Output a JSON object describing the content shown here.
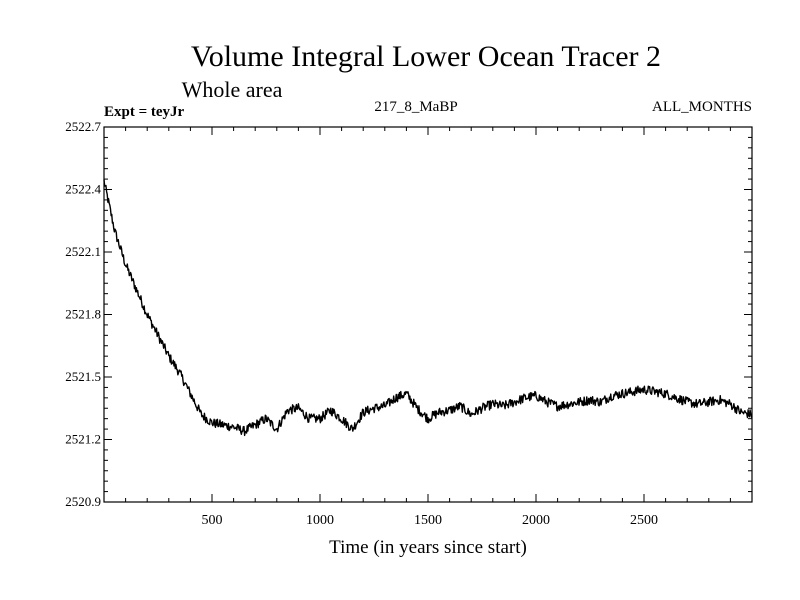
{
  "chart_data": {
    "type": "line",
    "title": "Volume Integral Lower Ocean Tracer 2",
    "subtitle": "Whole area",
    "annotations": {
      "left": "Expt = teyJr",
      "center": "217_8_MaBP",
      "right": "ALL_MONTHS"
    },
    "xlabel": "Time (in years since start)",
    "ylabel": "",
    "xlim": [
      0,
      3000
    ],
    "ylim": [
      2520.9,
      2522.7
    ],
    "x_ticks": [
      500,
      1000,
      1500,
      2000,
      2500
    ],
    "x_tick_labels": [
      "500",
      "1000",
      "1500",
      "2000",
      "2500"
    ],
    "y_ticks": [
      2520.9,
      2521.2,
      2521.5,
      2521.8,
      2522.1,
      2522.4,
      2522.7
    ],
    "y_tick_labels": [
      "2520.9",
      "2521.2",
      "2521.5",
      "2521.8",
      "2522.1",
      "2522.4",
      "2522.7"
    ],
    "x_minor_step": 100,
    "y_minor_step": 0.05,
    "grid": false,
    "series": [
      {
        "name": "teyJr",
        "color": "#000000",
        "x": [
          0,
          50,
          100,
          150,
          200,
          250,
          300,
          350,
          400,
          450,
          500,
          550,
          600,
          650,
          700,
          750,
          800,
          850,
          900,
          950,
          1000,
          1050,
          1100,
          1150,
          1200,
          1250,
          1300,
          1350,
          1400,
          1450,
          1500,
          1550,
          1600,
          1650,
          1700,
          1750,
          1800,
          1850,
          1900,
          1950,
          2000,
          2050,
          2100,
          2150,
          2200,
          2250,
          2300,
          2350,
          2400,
          2450,
          2500,
          2550,
          2600,
          2650,
          2700,
          2750,
          2800,
          2850,
          2900,
          2950,
          3000
        ],
        "values": [
          2522.44,
          2522.2,
          2522.04,
          2521.92,
          2521.8,
          2521.7,
          2521.6,
          2521.52,
          2521.42,
          2521.32,
          2521.28,
          2521.27,
          2521.26,
          2521.24,
          2521.27,
          2521.3,
          2521.25,
          2521.34,
          2521.35,
          2521.3,
          2521.3,
          2521.34,
          2521.3,
          2521.25,
          2521.33,
          2521.35,
          2521.36,
          2521.4,
          2521.42,
          2521.35,
          2521.3,
          2521.33,
          2521.34,
          2521.36,
          2521.32,
          2521.35,
          2521.37,
          2521.36,
          2521.38,
          2521.4,
          2521.41,
          2521.38,
          2521.36,
          2521.37,
          2521.38,
          2521.39,
          2521.38,
          2521.41,
          2521.42,
          2521.43,
          2521.44,
          2521.43,
          2521.42,
          2521.4,
          2521.38,
          2521.37,
          2521.38,
          2521.39,
          2521.37,
          2521.33,
          2521.32
        ]
      }
    ]
  }
}
